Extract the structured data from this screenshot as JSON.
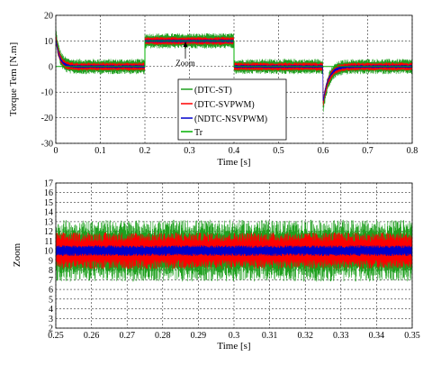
{
  "chart_data": [
    {
      "type": "line",
      "title": "",
      "xlabel": "Time [s]",
      "ylabel": "Torque Tem [N.m]",
      "xlim": [
        0,
        0.8
      ],
      "ylim": [
        -30,
        20
      ],
      "x_ticks": [
        "0",
        "0.1",
        "0.2",
        "0.3",
        "0.4",
        "0.5",
        "0.6",
        "0.7",
        "0.8"
      ],
      "y_ticks": [
        "-30",
        "-20",
        "-10",
        "0",
        "10",
        "20"
      ],
      "grid": true,
      "legend_position": "center",
      "annotation": "Zoom",
      "series": [
        {
          "name": "(DTC-ST)",
          "color": "#1fa01f",
          "band": 3.0
        },
        {
          "name": "(DTC-SVPWM)",
          "color": "#ff0000",
          "band": 1.6
        },
        {
          "name": "(NDTC-NSVPWM)",
          "color": "#0000cc",
          "band": 0.6
        },
        {
          "name": "Tr",
          "color": "#00b000",
          "band": 0
        }
      ],
      "reference_steps": [
        {
          "x": 0.0,
          "y": 0
        },
        {
          "x": 0.2,
          "y": 10
        },
        {
          "x": 0.4,
          "y": 0
        },
        {
          "x": 0.6,
          "y": 0
        }
      ],
      "transients": {
        "start_peak": 13,
        "dip_at_0_6": -16
      }
    },
    {
      "type": "line",
      "title": "",
      "xlabel": "Time [s]",
      "ylabel": "Zoom",
      "xlim": [
        0.25,
        0.35
      ],
      "ylim": [
        2,
        17
      ],
      "x_ticks": [
        "0.25",
        "0.26",
        "0.27",
        "0.28",
        "0.29",
        "0.3",
        "0.31",
        "0.32",
        "0.33",
        "0.34",
        "0.35"
      ],
      "y_ticks": [
        "2",
        "3",
        "4",
        "5",
        "6",
        "7",
        "8",
        "9",
        "10",
        "11",
        "12",
        "13",
        "14",
        "15",
        "16",
        "17"
      ],
      "grid": true,
      "series": [
        {
          "name": "(DTC-ST)",
          "color": "#1fa01f",
          "center": 10,
          "band": 3.2
        },
        {
          "name": "(DTC-SVPWM)",
          "color": "#ff0000",
          "center": 10,
          "band": 1.9
        },
        {
          "name": "(NDTC-NSVPWM)",
          "color": "#0000cc",
          "center": 10,
          "band": 0.55
        }
      ]
    }
  ]
}
